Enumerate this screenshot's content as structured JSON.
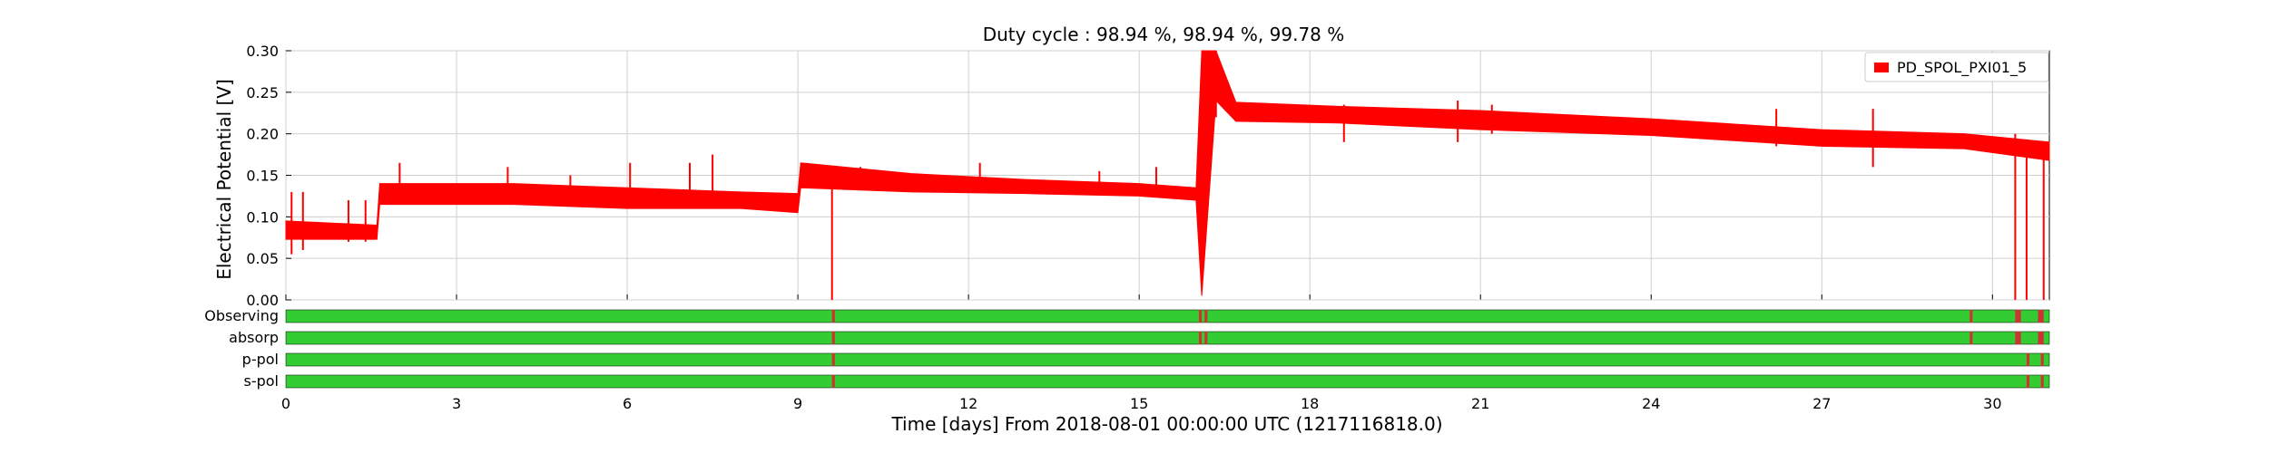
{
  "chart_data": {
    "type": "line",
    "title": "Duty cycle : 98.94 %, 98.94 %, 99.78 %",
    "ylabel": "Electrical Potential [V]",
    "xlabel": "Time [days] From 2018-08-01 00:00:00 UTC (1217116818.0)",
    "xlim": [
      0,
      31
    ],
    "ylim": [
      0,
      0.3
    ],
    "x_ticks": [
      "0",
      "3",
      "6",
      "9",
      "12",
      "15",
      "18",
      "21",
      "24",
      "27",
      "30"
    ],
    "y_ticks": [
      "0.00",
      "0.05",
      "0.10",
      "0.15",
      "0.20",
      "0.25",
      "0.30"
    ],
    "grid": true,
    "legend_position": "top-right",
    "series": [
      {
        "name": "PD_SPOL_PXI01_5",
        "color": "#ff0000",
        "band": [
          [
            0.0,
            0.073,
            0.095
          ],
          [
            1.6,
            0.073,
            0.09
          ],
          [
            1.65,
            0.115,
            0.14
          ],
          [
            4.0,
            0.115,
            0.14
          ],
          [
            6.0,
            0.11,
            0.135
          ],
          [
            8.0,
            0.11,
            0.13
          ],
          [
            9.0,
            0.105,
            0.128
          ],
          [
            9.05,
            0.135,
            0.165
          ],
          [
            11.0,
            0.13,
            0.152
          ],
          [
            13.0,
            0.128,
            0.145
          ],
          [
            15.0,
            0.125,
            0.14
          ],
          [
            16.0,
            0.12,
            0.135
          ],
          [
            16.1,
            0.005,
            0.3
          ],
          [
            16.35,
            0.24,
            0.3
          ],
          [
            16.7,
            0.215,
            0.238
          ],
          [
            18.5,
            0.213,
            0.233
          ],
          [
            21.0,
            0.205,
            0.228
          ],
          [
            24.0,
            0.198,
            0.218
          ],
          [
            27.0,
            0.185,
            0.205
          ],
          [
            29.5,
            0.182,
            0.2
          ],
          [
            31.0,
            0.168,
            0.19
          ]
        ],
        "spikes": [
          [
            0.1,
            0.055,
            0.13
          ],
          [
            0.3,
            0.06,
            0.13
          ],
          [
            1.1,
            0.07,
            0.12
          ],
          [
            1.4,
            0.07,
            0.12
          ],
          [
            2.0,
            0.12,
            0.165
          ],
          [
            3.9,
            0.12,
            0.16
          ],
          [
            5.0,
            0.115,
            0.15
          ],
          [
            6.05,
            0.11,
            0.165
          ],
          [
            7.1,
            0.115,
            0.165
          ],
          [
            7.5,
            0.11,
            0.175
          ],
          [
            9.6,
            0.0,
            0.14
          ],
          [
            10.1,
            0.135,
            0.16
          ],
          [
            12.2,
            0.13,
            0.165
          ],
          [
            14.3,
            0.128,
            0.155
          ],
          [
            15.3,
            0.125,
            0.16
          ],
          [
            16.35,
            0.22,
            0.3
          ],
          [
            18.6,
            0.19,
            0.235
          ],
          [
            20.6,
            0.19,
            0.24
          ],
          [
            21.2,
            0.2,
            0.235
          ],
          [
            26.2,
            0.185,
            0.23
          ],
          [
            27.9,
            0.16,
            0.23
          ],
          [
            30.4,
            0.0,
            0.2
          ],
          [
            30.6,
            0.0,
            0.19
          ],
          [
            30.9,
            0.0,
            0.18
          ]
        ]
      }
    ],
    "state_bars": [
      {
        "label": "Observing",
        "color_on": "#33cc33",
        "color_off": "#cc3333",
        "off": [
          [
            9.6,
            9.65
          ],
          [
            16.05,
            16.1
          ],
          [
            16.15,
            16.2
          ],
          [
            29.6,
            29.65
          ],
          [
            30.4,
            30.5
          ],
          [
            30.8,
            30.9
          ]
        ]
      },
      {
        "label": "absorp",
        "color_on": "#33cc33",
        "color_off": "#cc3333",
        "off": [
          [
            9.6,
            9.65
          ],
          [
            16.05,
            16.1
          ],
          [
            16.15,
            16.2
          ],
          [
            29.6,
            29.65
          ],
          [
            30.4,
            30.5
          ],
          [
            30.8,
            30.9
          ]
        ]
      },
      {
        "label": "p-pol",
        "color_on": "#33cc33",
        "color_off": "#cc3333",
        "off": [
          [
            9.6,
            9.65
          ],
          [
            30.6,
            30.65
          ],
          [
            30.85,
            30.9
          ]
        ]
      },
      {
        "label": "s-pol",
        "color_on": "#33cc33",
        "color_off": "#cc3333",
        "off": [
          [
            9.6,
            9.65
          ],
          [
            30.6,
            30.65
          ],
          [
            30.85,
            30.9
          ]
        ]
      }
    ]
  }
}
